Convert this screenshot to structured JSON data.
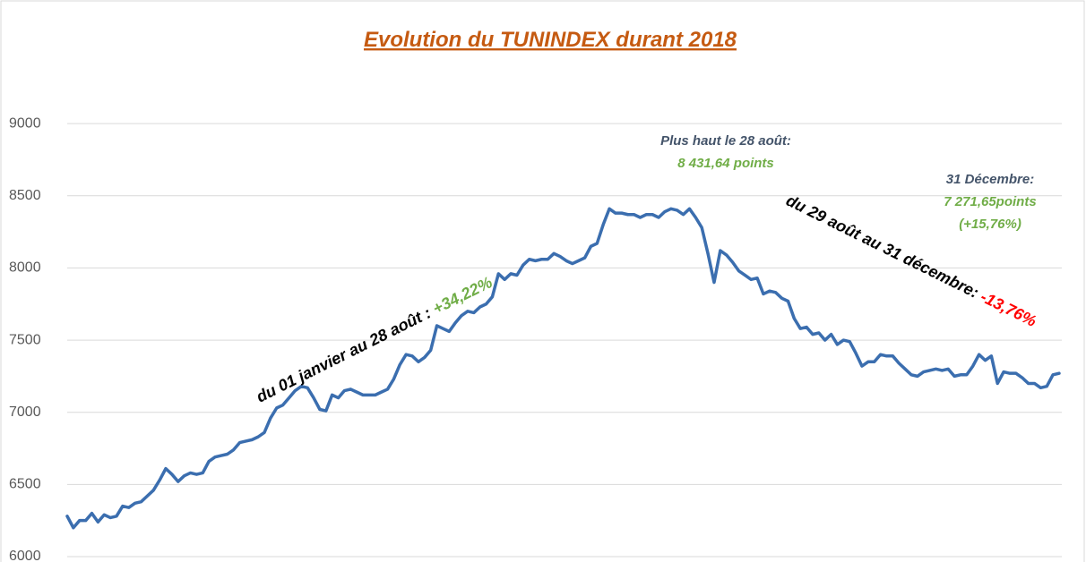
{
  "chart_data": {
    "type": "line",
    "title": "Evolution du TUNINDEX durant 2018",
    "series": [
      {
        "name": "TUNINDEX",
        "color": "#3b6eaf",
        "values": [
          6280,
          6200,
          6250,
          6250,
          6300,
          6240,
          6290,
          6270,
          6280,
          6350,
          6340,
          6370,
          6380,
          6420,
          6460,
          6530,
          6610,
          6570,
          6520,
          6560,
          6580,
          6570,
          6580,
          6660,
          6690,
          6700,
          6710,
          6740,
          6790,
          6800,
          6810,
          6830,
          6860,
          6960,
          7030,
          7050,
          7100,
          7150,
          7180,
          7170,
          7100,
          7020,
          7010,
          7120,
          7100,
          7150,
          7160,
          7140,
          7120,
          7120,
          7120,
          7140,
          7160,
          7230,
          7330,
          7400,
          7390,
          7350,
          7380,
          7430,
          7600,
          7580,
          7560,
          7620,
          7670,
          7700,
          7690,
          7730,
          7750,
          7800,
          7960,
          7920,
          7960,
          7950,
          8020,
          8060,
          8050,
          8060,
          8060,
          8100,
          8080,
          8050,
          8030,
          8050,
          8070,
          8150,
          8170,
          8300,
          8410,
          8380,
          8380,
          8370,
          8370,
          8350,
          8370,
          8370,
          8350,
          8390,
          8410,
          8400,
          8370,
          8410,
          8350,
          8280,
          8100,
          7900,
          8120,
          8090,
          8040,
          7980,
          7950,
          7920,
          7930,
          7820,
          7840,
          7830,
          7790,
          7770,
          7650,
          7580,
          7590,
          7540,
          7550,
          7500,
          7540,
          7470,
          7500,
          7490,
          7410,
          7320,
          7350,
          7350,
          7400,
          7390,
          7390,
          7340,
          7300,
          7260,
          7250,
          7280,
          7290,
          7300,
          7290,
          7300,
          7250,
          7260,
          7260,
          7320,
          7400,
          7360,
          7390,
          7200,
          7280,
          7270,
          7270,
          7240,
          7200,
          7200,
          7170,
          7180,
          7260,
          7270
        ]
      }
    ],
    "ylim": [
      6000,
      9500
    ],
    "yticks": [
      6000,
      6500,
      7000,
      7500,
      8000,
      8500,
      9000
    ],
    "grid": true,
    "annotations": [
      {
        "lines": [
          "Plus haut le 28 août:",
          "8 431,64 points"
        ]
      },
      {
        "lines": [
          "31 Décembre:",
          "7 271,65points",
          "(+15,76%)"
        ]
      },
      {
        "parts": [
          "du 01 janvier au 28 août : ",
          "+34,22%"
        ]
      },
      {
        "parts": [
          "du 29 août au 31 décembre: ",
          "-13,76%"
        ]
      }
    ]
  }
}
